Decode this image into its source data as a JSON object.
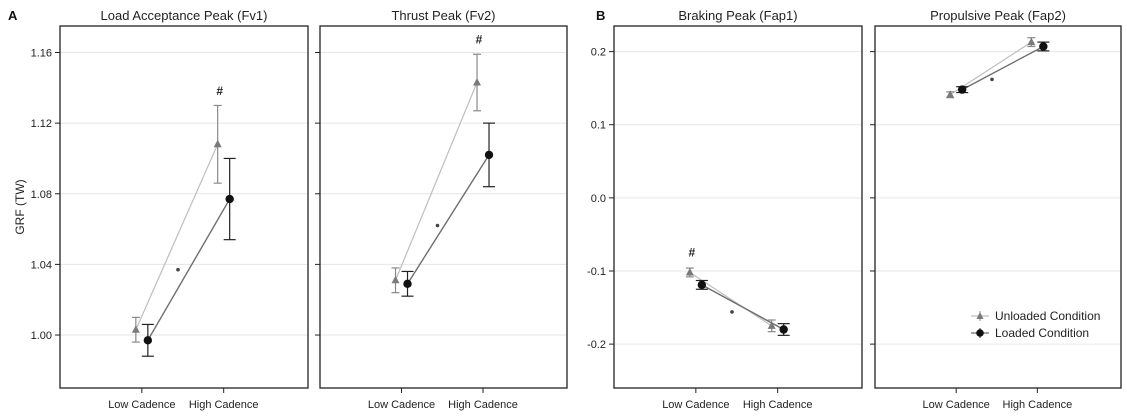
{
  "ylabel": "GRF (TW)",
  "chart_data": [
    {
      "type": "line",
      "panel_letter": "A",
      "title": "Load Acceptance Peak (Fv1)",
      "categories": [
        "Low Cadence",
        "High Cadence"
      ],
      "ylim": [
        0.97,
        1.175
      ],
      "yticks": [
        1.0,
        1.04,
        1.08,
        1.12,
        1.16
      ],
      "ytick_labels": [
        "1.00",
        "1.04",
        "1.08",
        "1.12",
        "1.16"
      ],
      "show_ylabel": true,
      "series": [
        {
          "key": "unloaded",
          "values": [
            1.003,
            1.108
          ],
          "err": [
            0.007,
            0.022
          ]
        },
        {
          "key": "loaded",
          "values": [
            0.997,
            1.077
          ],
          "err": [
            0.009,
            0.023
          ]
        }
      ],
      "effect_marker": 1.037,
      "significance": [
        {
          "index": 1,
          "text": "#",
          "y": 1.136
        }
      ]
    },
    {
      "type": "line",
      "panel_letter": "",
      "title": "Thrust Peak (Fv2)",
      "categories": [
        "Low Cadence",
        "High Cadence"
      ],
      "ylim": [
        0.97,
        1.175
      ],
      "yticks": [
        1.0,
        1.04,
        1.08,
        1.12,
        1.16
      ],
      "ytick_labels": [],
      "show_ylabel": false,
      "series": [
        {
          "key": "unloaded",
          "values": [
            1.031,
            1.143
          ],
          "err": [
            0.007,
            0.016
          ]
        },
        {
          "key": "loaded",
          "values": [
            1.029,
            1.102
          ],
          "err": [
            0.007,
            0.018
          ]
        }
      ],
      "effect_marker": 1.062,
      "significance": [
        {
          "index": 1,
          "text": "#",
          "y": 1.165
        }
      ]
    },
    {
      "type": "line",
      "panel_letter": "B",
      "title": "Braking Peak (Fap1)",
      "categories": [
        "Low Cadence",
        "High Cadence"
      ],
      "ylim": [
        -0.26,
        0.235
      ],
      "yticks": [
        -0.2,
        -0.1,
        0.0,
        0.1,
        0.2
      ],
      "ytick_labels": [
        "-0.2",
        "-0.1",
        "0.0",
        "0.1",
        "0.2"
      ],
      "show_ylabel": false,
      "series": [
        {
          "key": "unloaded",
          "values": [
            -0.102,
            -0.175
          ],
          "err": [
            0.006,
            0.008
          ]
        },
        {
          "key": "loaded",
          "values": [
            -0.119,
            -0.18
          ],
          "err": [
            0.006,
            0.008
          ]
        }
      ],
      "effect_marker": -0.156,
      "significance": [
        {
          "index": 0,
          "text": "#",
          "y": -0.08
        }
      ]
    },
    {
      "type": "line",
      "panel_letter": "",
      "title": "Propulsive Peak (Fap2)",
      "categories": [
        "Low Cadence",
        "High Cadence"
      ],
      "ylim": [
        -0.26,
        0.235
      ],
      "yticks": [
        -0.2,
        -0.1,
        0.0,
        0.1,
        0.2
      ],
      "ytick_labels": [],
      "show_ylabel": false,
      "series": [
        {
          "key": "unloaded",
          "values": [
            0.141,
            0.213
          ],
          "err": [
            0.004,
            0.006
          ]
        },
        {
          "key": "loaded",
          "values": [
            0.148,
            0.207
          ],
          "err": [
            0.004,
            0.006
          ]
        }
      ],
      "effect_marker": 0.162,
      "significance": [],
      "legend": [
        {
          "key": "unloaded",
          "label": "Unloaded Condition"
        },
        {
          "key": "loaded",
          "label": "Loaded Condition"
        }
      ],
      "legend_position": "bottom-right"
    }
  ],
  "colors": {
    "unloaded_line": "#bdbdbd",
    "unloaded_marker": "#7a7a7a",
    "loaded_line": "#6e6e6e",
    "loaded_marker": "#111111",
    "frame": "#222222",
    "grid": "#e6e6e6"
  }
}
